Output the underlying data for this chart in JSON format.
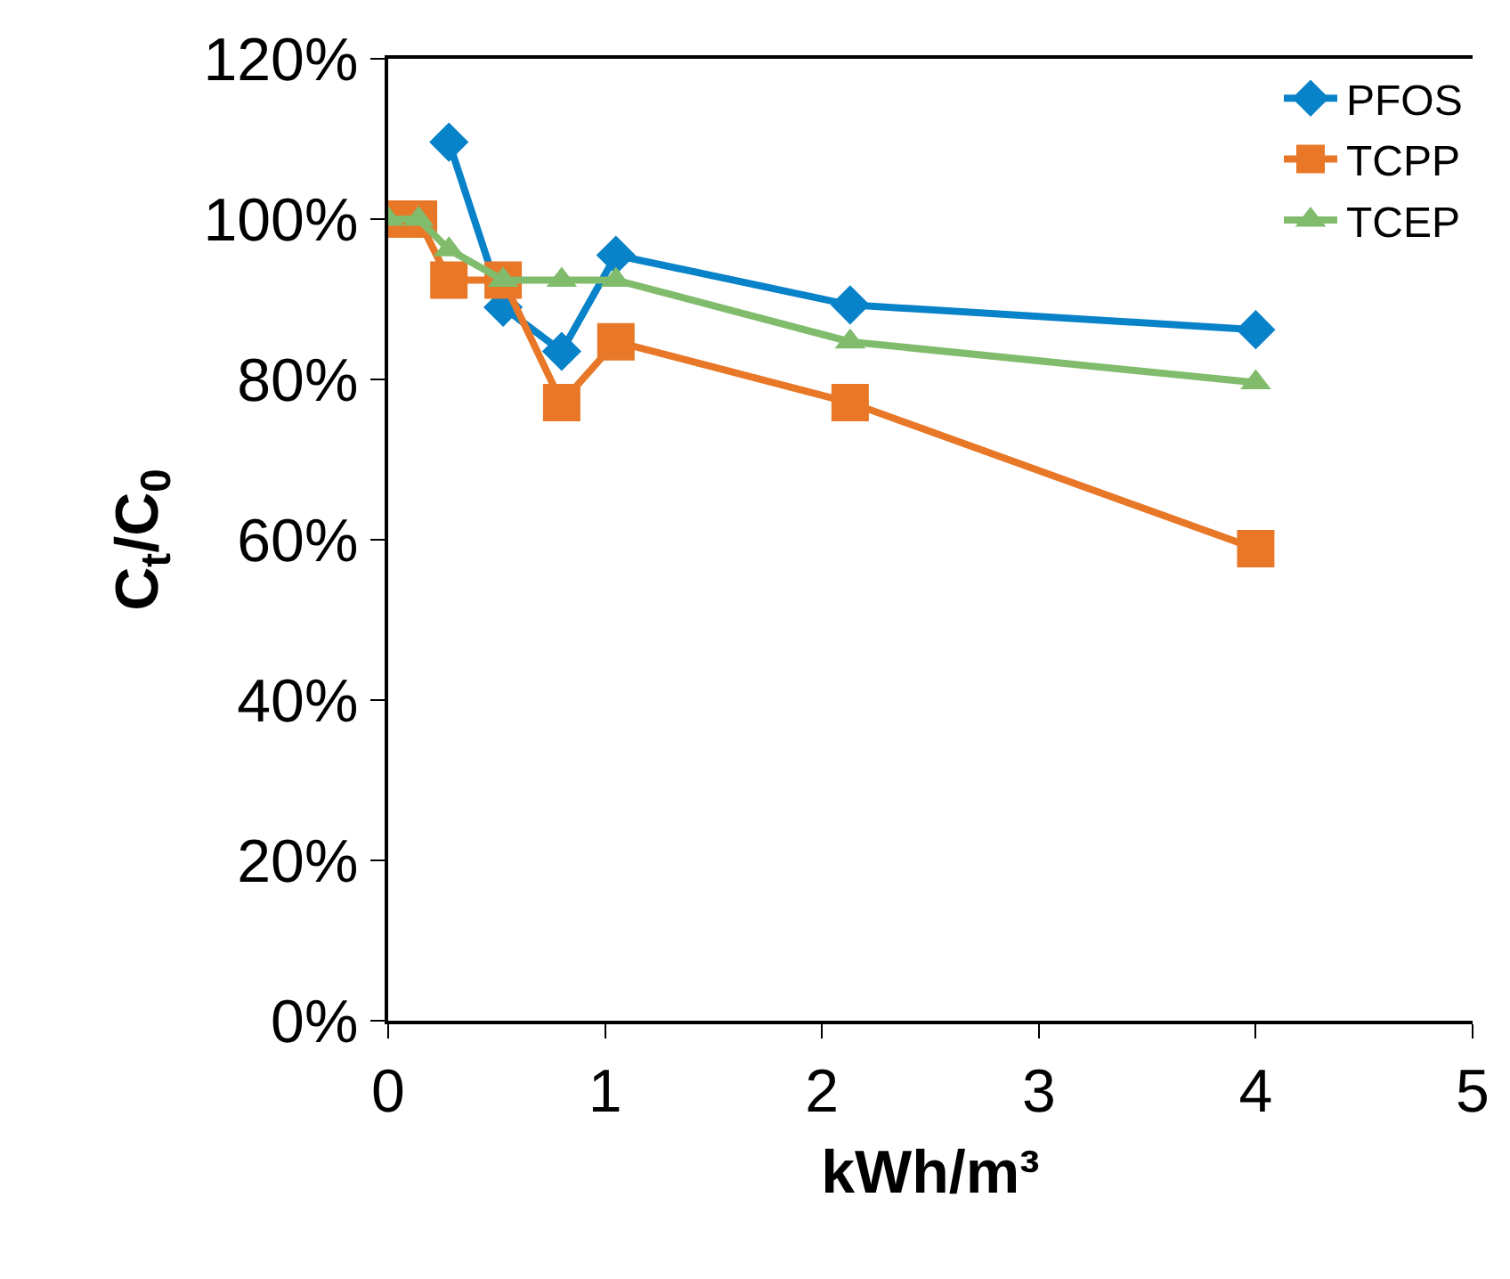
{
  "chart_data": {
    "type": "line",
    "xlabel": "kWh/m³",
    "ylabel": "C$_{t}$/C$_{0}$",
    "x": [
      0,
      0.14,
      0.28,
      0.53,
      0.8,
      1.05,
      2.13,
      4.0
    ],
    "series": [
      {
        "name": "PFOS",
        "color": "#0882c8",
        "marker": "diamond",
        "values": [
          null,
          null,
          109.6,
          89,
          83.5,
          95.5,
          89.3,
          86.2
        ]
      },
      {
        "name": "TCPP",
        "color": "#e87828",
        "marker": "square",
        "values": [
          100,
          100,
          92.4,
          92.4,
          77.1,
          84.7,
          77.1,
          58.9
        ]
      },
      {
        "name": "TCEP",
        "color": "#80bc6c",
        "marker": "triangle",
        "values": [
          100,
          100,
          96.2,
          92.4,
          92.4,
          92.4,
          84.7,
          79.6
        ]
      }
    ],
    "xlim": [
      0,
      5
    ],
    "xticks": [
      0,
      1,
      2,
      3,
      4,
      5
    ],
    "ylim": [
      0,
      120
    ],
    "yticks": [
      {
        "value": 0,
        "label": "0%"
      },
      {
        "value": 20,
        "label": "20%"
      },
      {
        "value": 40,
        "label": "40%"
      },
      {
        "value": 60,
        "label": "60%"
      },
      {
        "value": 80,
        "label": "80%"
      },
      {
        "value": 100,
        "label": "100%"
      },
      {
        "value": 120,
        "label": "120%"
      }
    ],
    "legend": "top right"
  }
}
